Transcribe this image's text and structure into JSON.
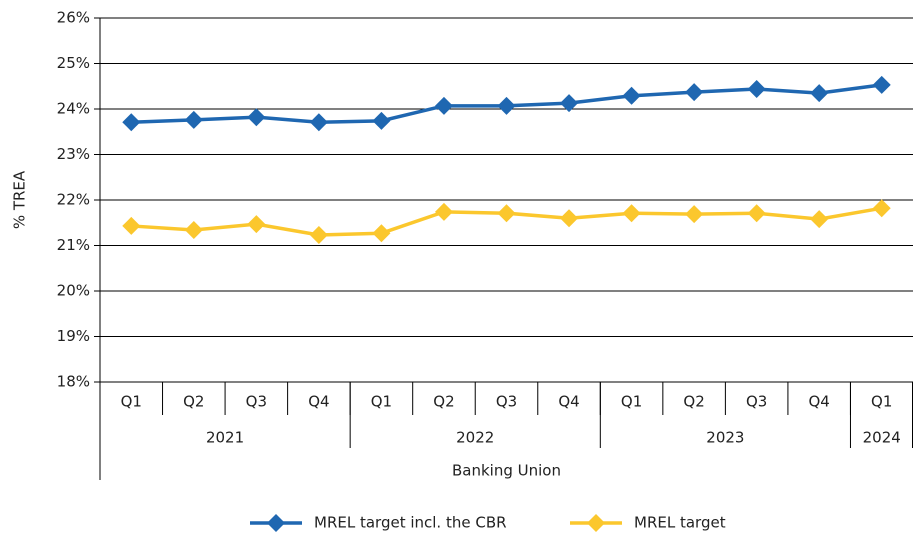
{
  "chart_data": {
    "type": "line",
    "y_label": "% TREA",
    "categories": [
      "Q1",
      "Q2",
      "Q3",
      "Q4",
      "Q1",
      "Q2",
      "Q3",
      "Q4",
      "Q1",
      "Q2",
      "Q3",
      "Q4",
      "Q1"
    ],
    "x_groups": [
      {
        "label": "2021",
        "span": 4
      },
      {
        "label": "2022",
        "span": 4
      },
      {
        "label": "2023",
        "span": 4
      },
      {
        "label": "2024",
        "span": 1
      }
    ],
    "x_group_label": "Banking Union",
    "series": [
      {
        "name": "MREL target incl. the CBR",
        "color": "#1f67b1",
        "values": [
          23.71,
          23.76,
          23.82,
          23.71,
          23.74,
          24.07,
          24.07,
          24.13,
          24.29,
          24.37,
          24.44,
          24.35,
          24.53
        ]
      },
      {
        "name": "MREL target",
        "color": "#fbc72d",
        "values": [
          21.43,
          21.34,
          21.47,
          21.23,
          21.27,
          21.74,
          21.71,
          21.6,
          21.71,
          21.69,
          21.71,
          21.58,
          21.82
        ]
      }
    ],
    "ylim": [
      18,
      26
    ],
    "yticks": [
      {
        "value": 18,
        "label": "18%"
      },
      {
        "value": 19,
        "label": "19%"
      },
      {
        "value": 20,
        "label": "20%"
      },
      {
        "value": 21,
        "label": "21%"
      },
      {
        "value": 22,
        "label": "22%"
      },
      {
        "value": 23,
        "label": "23%"
      },
      {
        "value": 24,
        "label": "24%"
      },
      {
        "value": 25,
        "label": "25%"
      },
      {
        "value": 26,
        "label": "26%"
      }
    ],
    "grid": true,
    "legend": "bottom"
  }
}
